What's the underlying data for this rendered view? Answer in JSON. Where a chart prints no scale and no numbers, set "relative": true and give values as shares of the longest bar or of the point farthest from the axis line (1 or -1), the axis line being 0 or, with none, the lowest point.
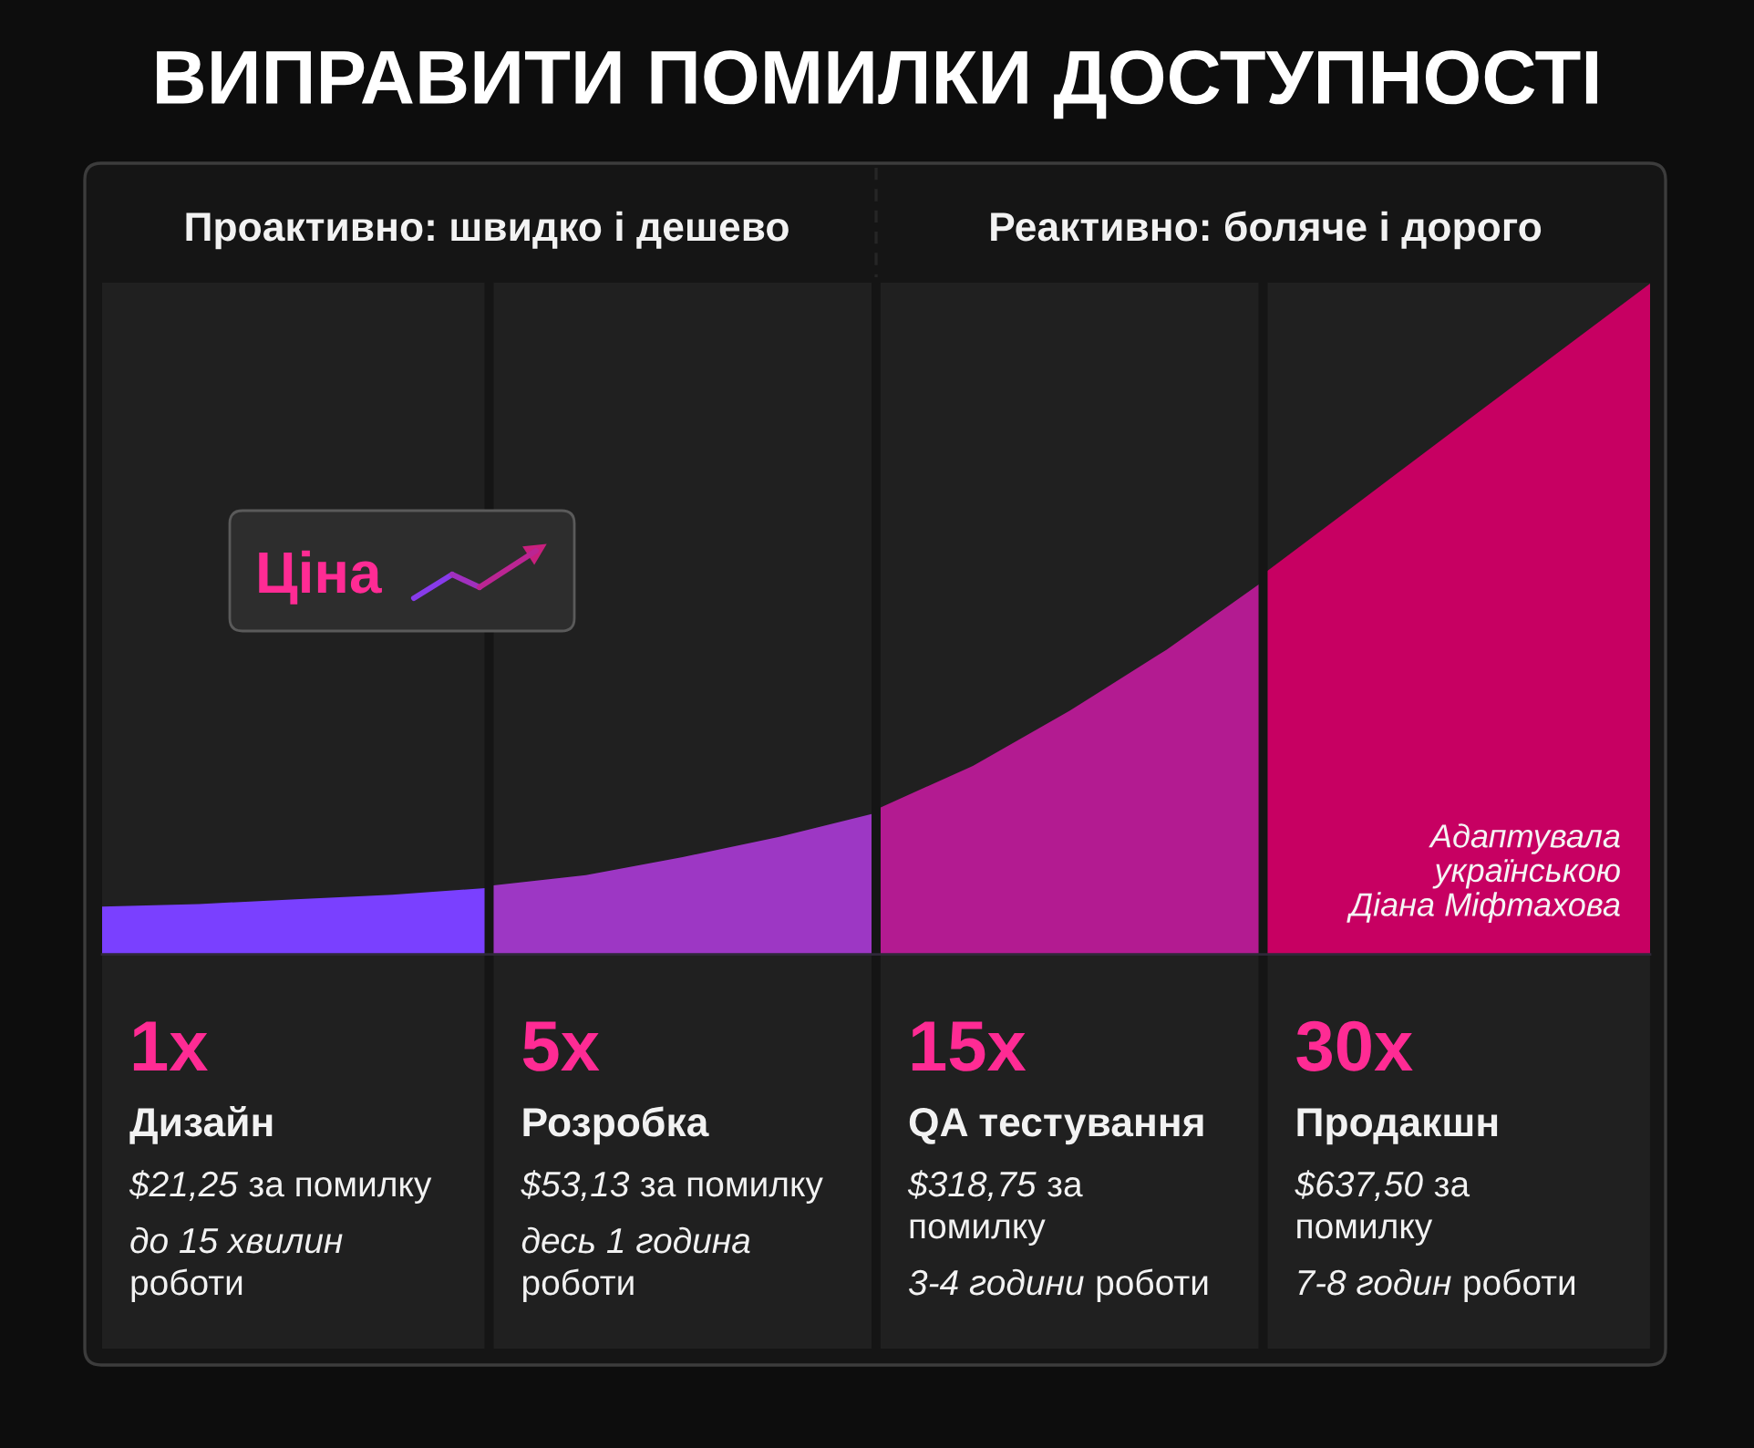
{
  "chart_data": {
    "type": "area",
    "title": "ВИПРАВИТИ ПОМИЛКИ ДОСТУПНОСТІ",
    "ylabel": "Ціна",
    "relative": true,
    "categories": [
      null,
      null,
      null,
      null,
      null,
      null,
      null,
      null,
      null,
      null,
      null,
      null,
      null,
      null,
      null,
      null,
      null
    ],
    "series": [
      {
        "color": "#7a40ff",
        "values": [
          0.071,
          0.075,
          0.082,
          0.089,
          0.099,
          null,
          null,
          null,
          null,
          null,
          null,
          null,
          null,
          null,
          null,
          null,
          null
        ]
      },
      {
        "color": "#9d37c4",
        "values": [
          null,
          null,
          null,
          null,
          0.102,
          0.118,
          0.145,
          0.175,
          0.211,
          null,
          null,
          null,
          null,
          null,
          null,
          null,
          null
        ]
      },
      {
        "color": "#b31b91",
        "values": [
          null,
          null,
          null,
          null,
          null,
          null,
          null,
          null,
          0.216,
          0.281,
          0.363,
          0.454,
          0.556,
          null,
          null,
          null,
          null
        ]
      },
      {
        "color": "#c70062",
        "values": [
          null,
          null,
          null,
          null,
          null,
          null,
          null,
          null,
          null,
          null,
          null,
          null,
          0.567,
          0.675,
          0.784,
          0.892,
          1.0
        ]
      }
    ],
    "annotations": [
      "Проактивно: швидко і дешево",
      "Реактивно: боляче і дорого",
      "1x",
      "Дизайн",
      "$21,25",
      "за помилку",
      "до 15 хвилин",
      "\nроботи",
      "5x",
      "Розробка",
      "$53,13",
      "за помилку",
      "десь 1 година",
      "\nроботи",
      "15x",
      "QA тестування",
      "$318,75",
      "за\nпомилку",
      "3-4 години",
      "роботи",
      "30x",
      "Продакшн",
      "$637,50",
      "за\nпомилку",
      "7-8 годин",
      "роботи",
      "Адаптувала\nукраїнською\nДіана Міфтахова"
    ]
  }
}
